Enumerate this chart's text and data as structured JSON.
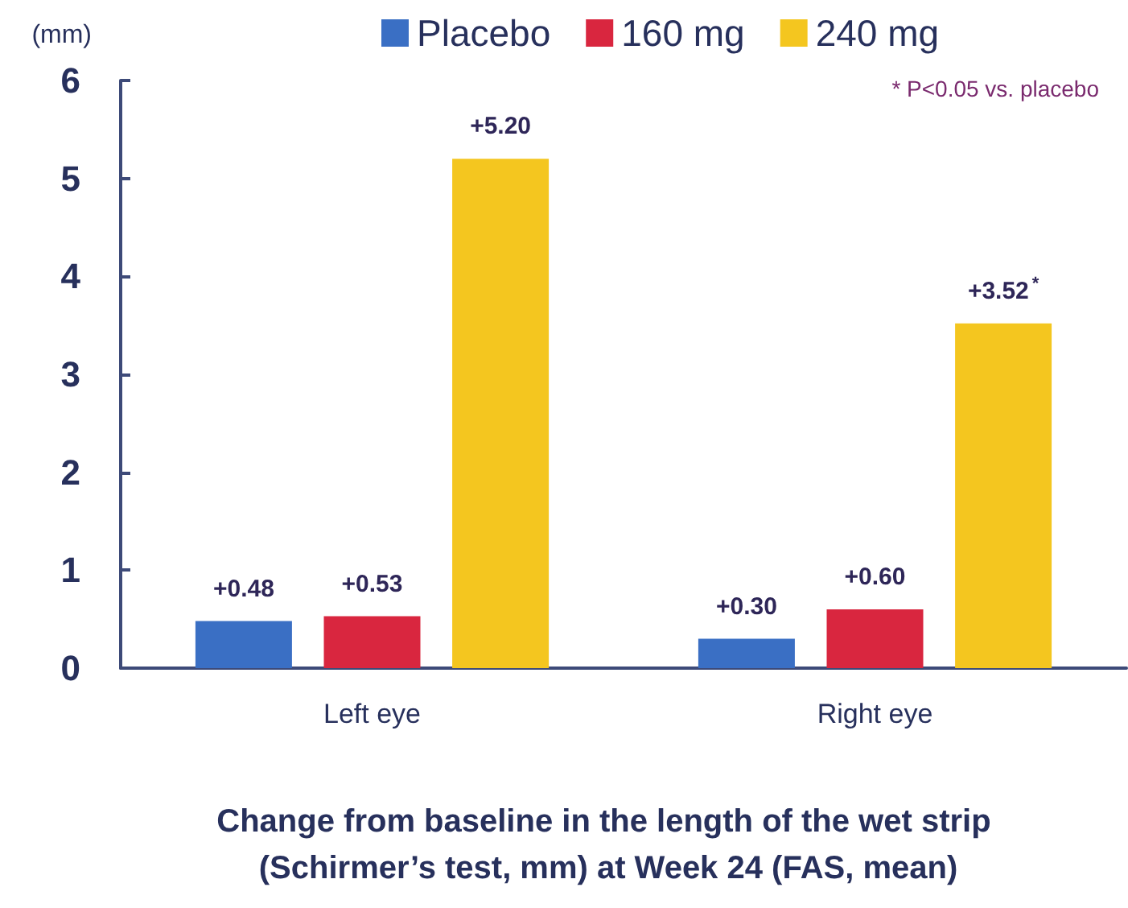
{
  "chart_data": {
    "type": "bar",
    "title": "Change from baseline in the length of the wet strip (Schirmer’s test, mm) at Week 24 (FAS, mean)",
    "ylabel": "(mm)",
    "annotations": [
      "* P<0.05 vs. placebo"
    ],
    "categories": [
      "Left eye",
      "Right eye"
    ],
    "series": [
      {
        "name": "Placebo",
        "color": "#3a6fc4",
        "values": [
          0.48,
          0.3
        ],
        "value_labels": [
          "+0.48",
          "+0.30"
        ]
      },
      {
        "name": "160 mg",
        "color": "#d9263f",
        "values": [
          0.53,
          0.6
        ],
        "value_labels": [
          "+0.53",
          "+0.60"
        ]
      },
      {
        "name": "240 mg",
        "color": "#f4c61f",
        "values": [
          5.2,
          3.52
        ],
        "value_labels": [
          "+5.20",
          "+3.52$^{*}$"
        ]
      }
    ],
    "ylim": [
      0,
      6
    ],
    "yticks": [
      0,
      1,
      2,
      3,
      4,
      5,
      6
    ],
    "legend": "top"
  }
}
